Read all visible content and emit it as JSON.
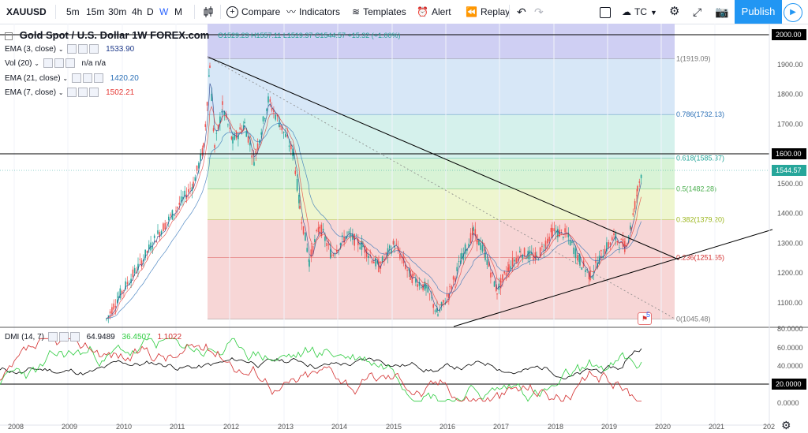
{
  "toolbar": {
    "symbol": "XAUUSD",
    "intervals": [
      "5m",
      "15m",
      "30m",
      "4h",
      "D",
      "W",
      "M"
    ],
    "active_interval": "W",
    "compare": "Compare",
    "indicators": "Indicators",
    "templates": "Templates",
    "alert": "Alert",
    "replay": "Replay",
    "layout_name": "TC",
    "publish": "Publish"
  },
  "legend": {
    "title": "Gold Spot / U.S. Dollar  1W  FOREX.com",
    "ohlc": "O1529.23  H1557.11  L1519.37  C1544.57  +15.32 (+1.00%)",
    "ema3_label": "EMA (3, close)",
    "ema3_value": "1533.90",
    "vol_label": "Vol (20)",
    "vol_value": "n/a  n/a",
    "ema21_label": "EMA (21, close)",
    "ema21_value": "1420.20",
    "ema7_label": "EMA (7, close)",
    "ema7_value": "1502.21",
    "dmi_label": "DMI (14, 7)",
    "dmi_v1": "64.9489",
    "dmi_v2": "36.4507",
    "dmi_v3": "1.1022"
  },
  "colors": {
    "ema3": "#1e3a8a",
    "ema21": "#2a6fb6",
    "ema7": "#e53935",
    "up": "#26a69a",
    "down": "#ef5350",
    "adx": "#000000",
    "pdi": "#2ecc40",
    "mdi": "#d32f2f"
  },
  "price_axis": {
    "labels": [
      "1900.00",
      "1800.00",
      "1700.00",
      "1600.00",
      "1500.00",
      "1400.00",
      "1300.00",
      "1200.00",
      "1100.00"
    ],
    "boxed": [
      "2000.00",
      "1600.00",
      "1544.57"
    ],
    "ymin": 1045,
    "ymax": 2020
  },
  "dmi_axis": {
    "labels": [
      "80.0000",
      "60.0000",
      "40.0000",
      "0.0000"
    ],
    "boxed": "20.0000"
  },
  "time_axis": [
    "2008",
    "2009",
    "2010",
    "2011",
    "2012",
    "2013",
    "2014",
    "2015",
    "2016",
    "2017",
    "2018",
    "2019",
    "2020",
    "2021",
    "202"
  ],
  "fib": [
    {
      "label": "1(1919.09)",
      "price": 1919.09,
      "fill": "#e6e6e6",
      "color": "#777777"
    },
    {
      "label": "0.786(1732.13)",
      "price": 1732.13,
      "fill": "#d7e7f7",
      "color": "#2a6fb6"
    },
    {
      "label": "0.618(1585.37)",
      "price": 1585.37,
      "fill": "#d5f1ec",
      "color": "#26a69a"
    },
    {
      "label": "0.5(1482.28)",
      "price": 1482.28,
      "fill": "#d8f3d6",
      "color": "#4caf50"
    },
    {
      "label": "0.382(1379.20)",
      "price": 1379.2,
      "fill": "#eef6cf",
      "color": "#9ab51a"
    },
    {
      "label": "0.236(1251.65)",
      "price": 1251.65,
      "fill": "#f7d6d6",
      "color": "#d32f2f"
    },
    {
      "label": "0(1045.48)",
      "price": 1045.48,
      "fill": "#f7d6d6",
      "color": "#777777"
    }
  ],
  "fib_top_fill": "#cfcff3",
  "alert_badge": "5"
}
